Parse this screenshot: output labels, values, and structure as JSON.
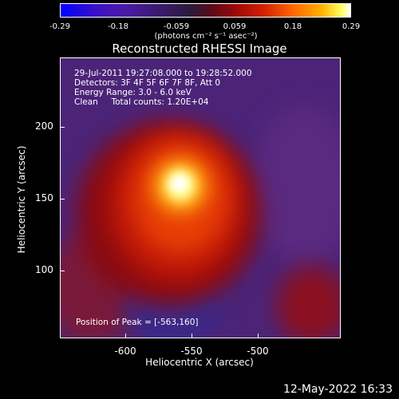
{
  "colorbar": {
    "ticks": [
      "-0.29",
      "-0.18",
      "-0.059",
      "0.059",
      "0.18",
      "0.29"
    ],
    "units": "(photons cm⁻² s⁻¹ asec⁻²)"
  },
  "title": "Reconstructed RHESSI Image",
  "annotations": {
    "time": "29-Jul-2011 19:27:08.000 to 19:28:52.000",
    "detectors": "Detectors: 3F 4F 5F 6F 7F 8F, Att 0",
    "energy": "Energy Range: 3.0 - 6.0 keV",
    "method": "Clean     Total counts: 1.20E+04",
    "peak": "Position of Peak = [-563,160]"
  },
  "chart_data": {
    "type": "heatmap",
    "title": "Reconstructed RHESSI Image",
    "xlabel": "Heliocentric X (arcsec)",
    "ylabel": "Heliocentric Y (arcsec)",
    "xlim": [
      -648,
      -543
    ],
    "ylim": [
      55,
      240
    ],
    "x_ticks": [
      "-600",
      "-550",
      "-500"
    ],
    "y_ticks": [
      "200",
      "150",
      "100"
    ],
    "peak": [
      -563,
      160
    ],
    "colorbar_range": [
      -0.29,
      0.29
    ]
  },
  "footer": {
    "timestamp": "12-May-2022 16:33"
  }
}
